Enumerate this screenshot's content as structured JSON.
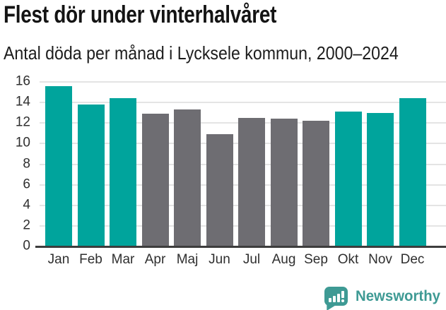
{
  "chart_data": {
    "type": "bar",
    "title": "Flest dör under vinterhalvåret",
    "subtitle": "Antal döda per månad i Lycksele kommun, 2000–2024",
    "categories": [
      "Jan",
      "Feb",
      "Mar",
      "Apr",
      "Maj",
      "Jun",
      "Jul",
      "Aug",
      "Sep",
      "Okt",
      "Nov",
      "Dec"
    ],
    "values": [
      15.6,
      13.8,
      14.4,
      12.9,
      13.3,
      10.9,
      12.5,
      12.4,
      12.2,
      13.1,
      13.0,
      14.4
    ],
    "bar_colors": [
      "teal",
      "teal",
      "teal",
      "gray",
      "gray",
      "gray",
      "gray",
      "gray",
      "gray",
      "teal",
      "teal",
      "teal"
    ],
    "colors": {
      "teal": "#00a49c",
      "gray": "#6e6d72"
    },
    "xlabel": "",
    "ylabel": "",
    "ylim": [
      0,
      16
    ],
    "yticks": [
      0,
      2,
      4,
      6,
      8,
      10,
      12,
      14,
      16
    ],
    "grid": true,
    "gridline_color": "#e4e4e4",
    "axis_color": "#3d3d3d",
    "legend": "none"
  },
  "footer": {
    "brand": "Newsworthy",
    "brand_color": "#3e9a94",
    "logo_icon": "bar-chart-speech-bubble"
  }
}
